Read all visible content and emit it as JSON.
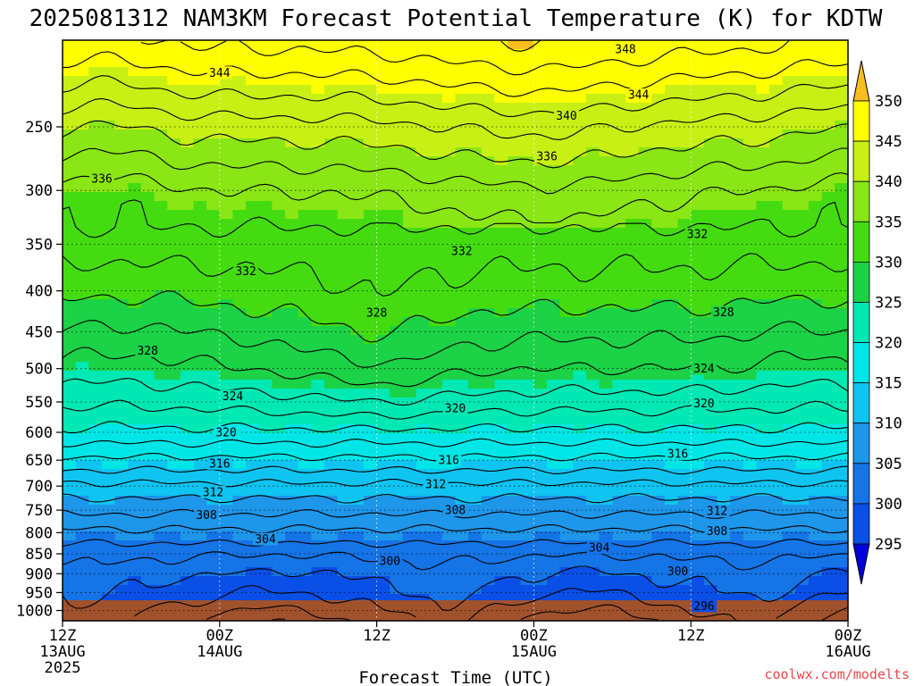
{
  "chart_data": {
    "type": "heatmap",
    "title": "2025081312 NAM3KM Forecast Potential Temperature (K) for KDTW",
    "xlabel": "Forecast Time (UTC)",
    "credit": "coolwx.com/modelts",
    "y_axis": {
      "scale": "log-pressure",
      "range": [
        1030,
        195
      ],
      "ticks": [
        250,
        300,
        350,
        400,
        450,
        500,
        550,
        600,
        650,
        700,
        750,
        800,
        850,
        900,
        950,
        1000
      ]
    },
    "x_axis": {
      "range_hours": [
        0,
        60
      ],
      "ticks": [
        {
          "hour": 0,
          "lines": [
            "12Z",
            "13AUG",
            "2025"
          ]
        },
        {
          "hour": 12,
          "lines": [
            "00Z",
            "14AUG"
          ]
        },
        {
          "hour": 24,
          "lines": [
            "12Z"
          ]
        },
        {
          "hour": 36,
          "lines": [
            "00Z",
            "15AUG"
          ]
        },
        {
          "hour": 48,
          "lines": [
            "12Z"
          ]
        },
        {
          "hour": 60,
          "lines": [
            "00Z",
            "16AUG"
          ]
        }
      ]
    },
    "grid": true,
    "colorbar": {
      "levels": [
        295,
        300,
        305,
        310,
        315,
        320,
        325,
        330,
        335,
        340,
        345,
        350
      ],
      "colors": [
        "#0000dd",
        "#0a4fe6",
        "#1574e6",
        "#1e96ea",
        "#0fc4f0",
        "#00e6e6",
        "#00e8b4",
        "#1cd246",
        "#44dc10",
        "#8ae614",
        "#c8f014",
        "#ffff00",
        "#f8be20"
      ],
      "extend": "both"
    },
    "theta_profile": {
      "pressure_hPa": [
        1000,
        950,
        900,
        850,
        800,
        750,
        700,
        650,
        600,
        550,
        500,
        450,
        400,
        350,
        300,
        250,
        200
      ],
      "theta_K": [
        298,
        299.5,
        300.7,
        302.5,
        305.5,
        308.5,
        311.5,
        315.5,
        319.5,
        323,
        326,
        328.5,
        331,
        333,
        336,
        341,
        348
      ]
    },
    "contour_labels": [
      {
        "text": "348",
        "hour": 43.0,
        "p": 200
      },
      {
        "text": "344",
        "hour": 12.0,
        "p": 214
      },
      {
        "text": "344",
        "hour": 44.0,
        "p": 228
      },
      {
        "text": "340",
        "hour": 38.5,
        "p": 242
      },
      {
        "text": "336",
        "hour": 37.0,
        "p": 272
      },
      {
        "text": "336",
        "hour": 3.0,
        "p": 290
      },
      {
        "text": "332",
        "hour": 48.5,
        "p": 340
      },
      {
        "text": "332",
        "hour": 30.5,
        "p": 357
      },
      {
        "text": "332",
        "hour": 14.0,
        "p": 378
      },
      {
        "text": "328",
        "hour": 24.0,
        "p": 426
      },
      {
        "text": "328",
        "hour": 50.5,
        "p": 425
      },
      {
        "text": "328",
        "hour": 6.5,
        "p": 475
      },
      {
        "text": "324",
        "hour": 49.0,
        "p": 500
      },
      {
        "text": "324",
        "hour": 13.0,
        "p": 541
      },
      {
        "text": "320",
        "hour": 30.0,
        "p": 560
      },
      {
        "text": "320",
        "hour": 49.0,
        "p": 552
      },
      {
        "text": "320",
        "hour": 12.5,
        "p": 600
      },
      {
        "text": "316",
        "hour": 29.5,
        "p": 650
      },
      {
        "text": "316",
        "hour": 47.0,
        "p": 638
      },
      {
        "text": "316",
        "hour": 12.0,
        "p": 656
      },
      {
        "text": "312",
        "hour": 28.5,
        "p": 696
      },
      {
        "text": "312",
        "hour": 11.5,
        "p": 712
      },
      {
        "text": "312",
        "hour": 50.0,
        "p": 752
      },
      {
        "text": "308",
        "hour": 30.0,
        "p": 750
      },
      {
        "text": "308",
        "hour": 50.0,
        "p": 796
      },
      {
        "text": "308",
        "hour": 11.0,
        "p": 760
      },
      {
        "text": "304",
        "hour": 15.5,
        "p": 815
      },
      {
        "text": "304",
        "hour": 41.0,
        "p": 835
      },
      {
        "text": "300",
        "hour": 25.0,
        "p": 868
      },
      {
        "text": "300",
        "hour": 47.0,
        "p": 893
      },
      {
        "text": "296",
        "hour": 49.0,
        "p": 987
      }
    ]
  }
}
